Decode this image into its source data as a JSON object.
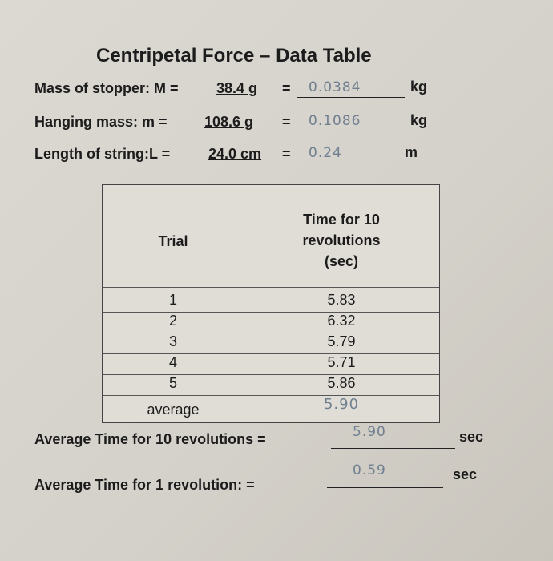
{
  "title": "Centripetal Force – Data Table",
  "measurements": [
    {
      "label": "Mass of stopper: M =",
      "given": "38.4 g",
      "equals": "=",
      "answer": "0.0384",
      "unit": "kg"
    },
    {
      "label": "Hanging mass: m =",
      "given": "108.6 g",
      "equals": "=",
      "answer": "0.1086",
      "unit": "kg"
    },
    {
      "label": "Length of string:L =",
      "given": "24.0 cm",
      "equals": "=",
      "answer": "0.24",
      "unit": "m"
    }
  ],
  "table": {
    "headers": [
      "Trial",
      "Time for 10 revolutions (sec)"
    ],
    "rows": [
      [
        "1",
        "5.83"
      ],
      [
        "2",
        "6.32"
      ],
      [
        "3",
        "5.79"
      ],
      [
        "4",
        "5.71"
      ],
      [
        "5",
        "5.86"
      ]
    ],
    "average": {
      "label": "average",
      "value": "5.90"
    }
  },
  "results": [
    {
      "label": "Average Time for 10 revolutions =",
      "answer": "5.90",
      "unit": "sec"
    },
    {
      "label": "Average Time for 1 revolution: =",
      "answer": "0.59",
      "unit": "sec"
    }
  ]
}
